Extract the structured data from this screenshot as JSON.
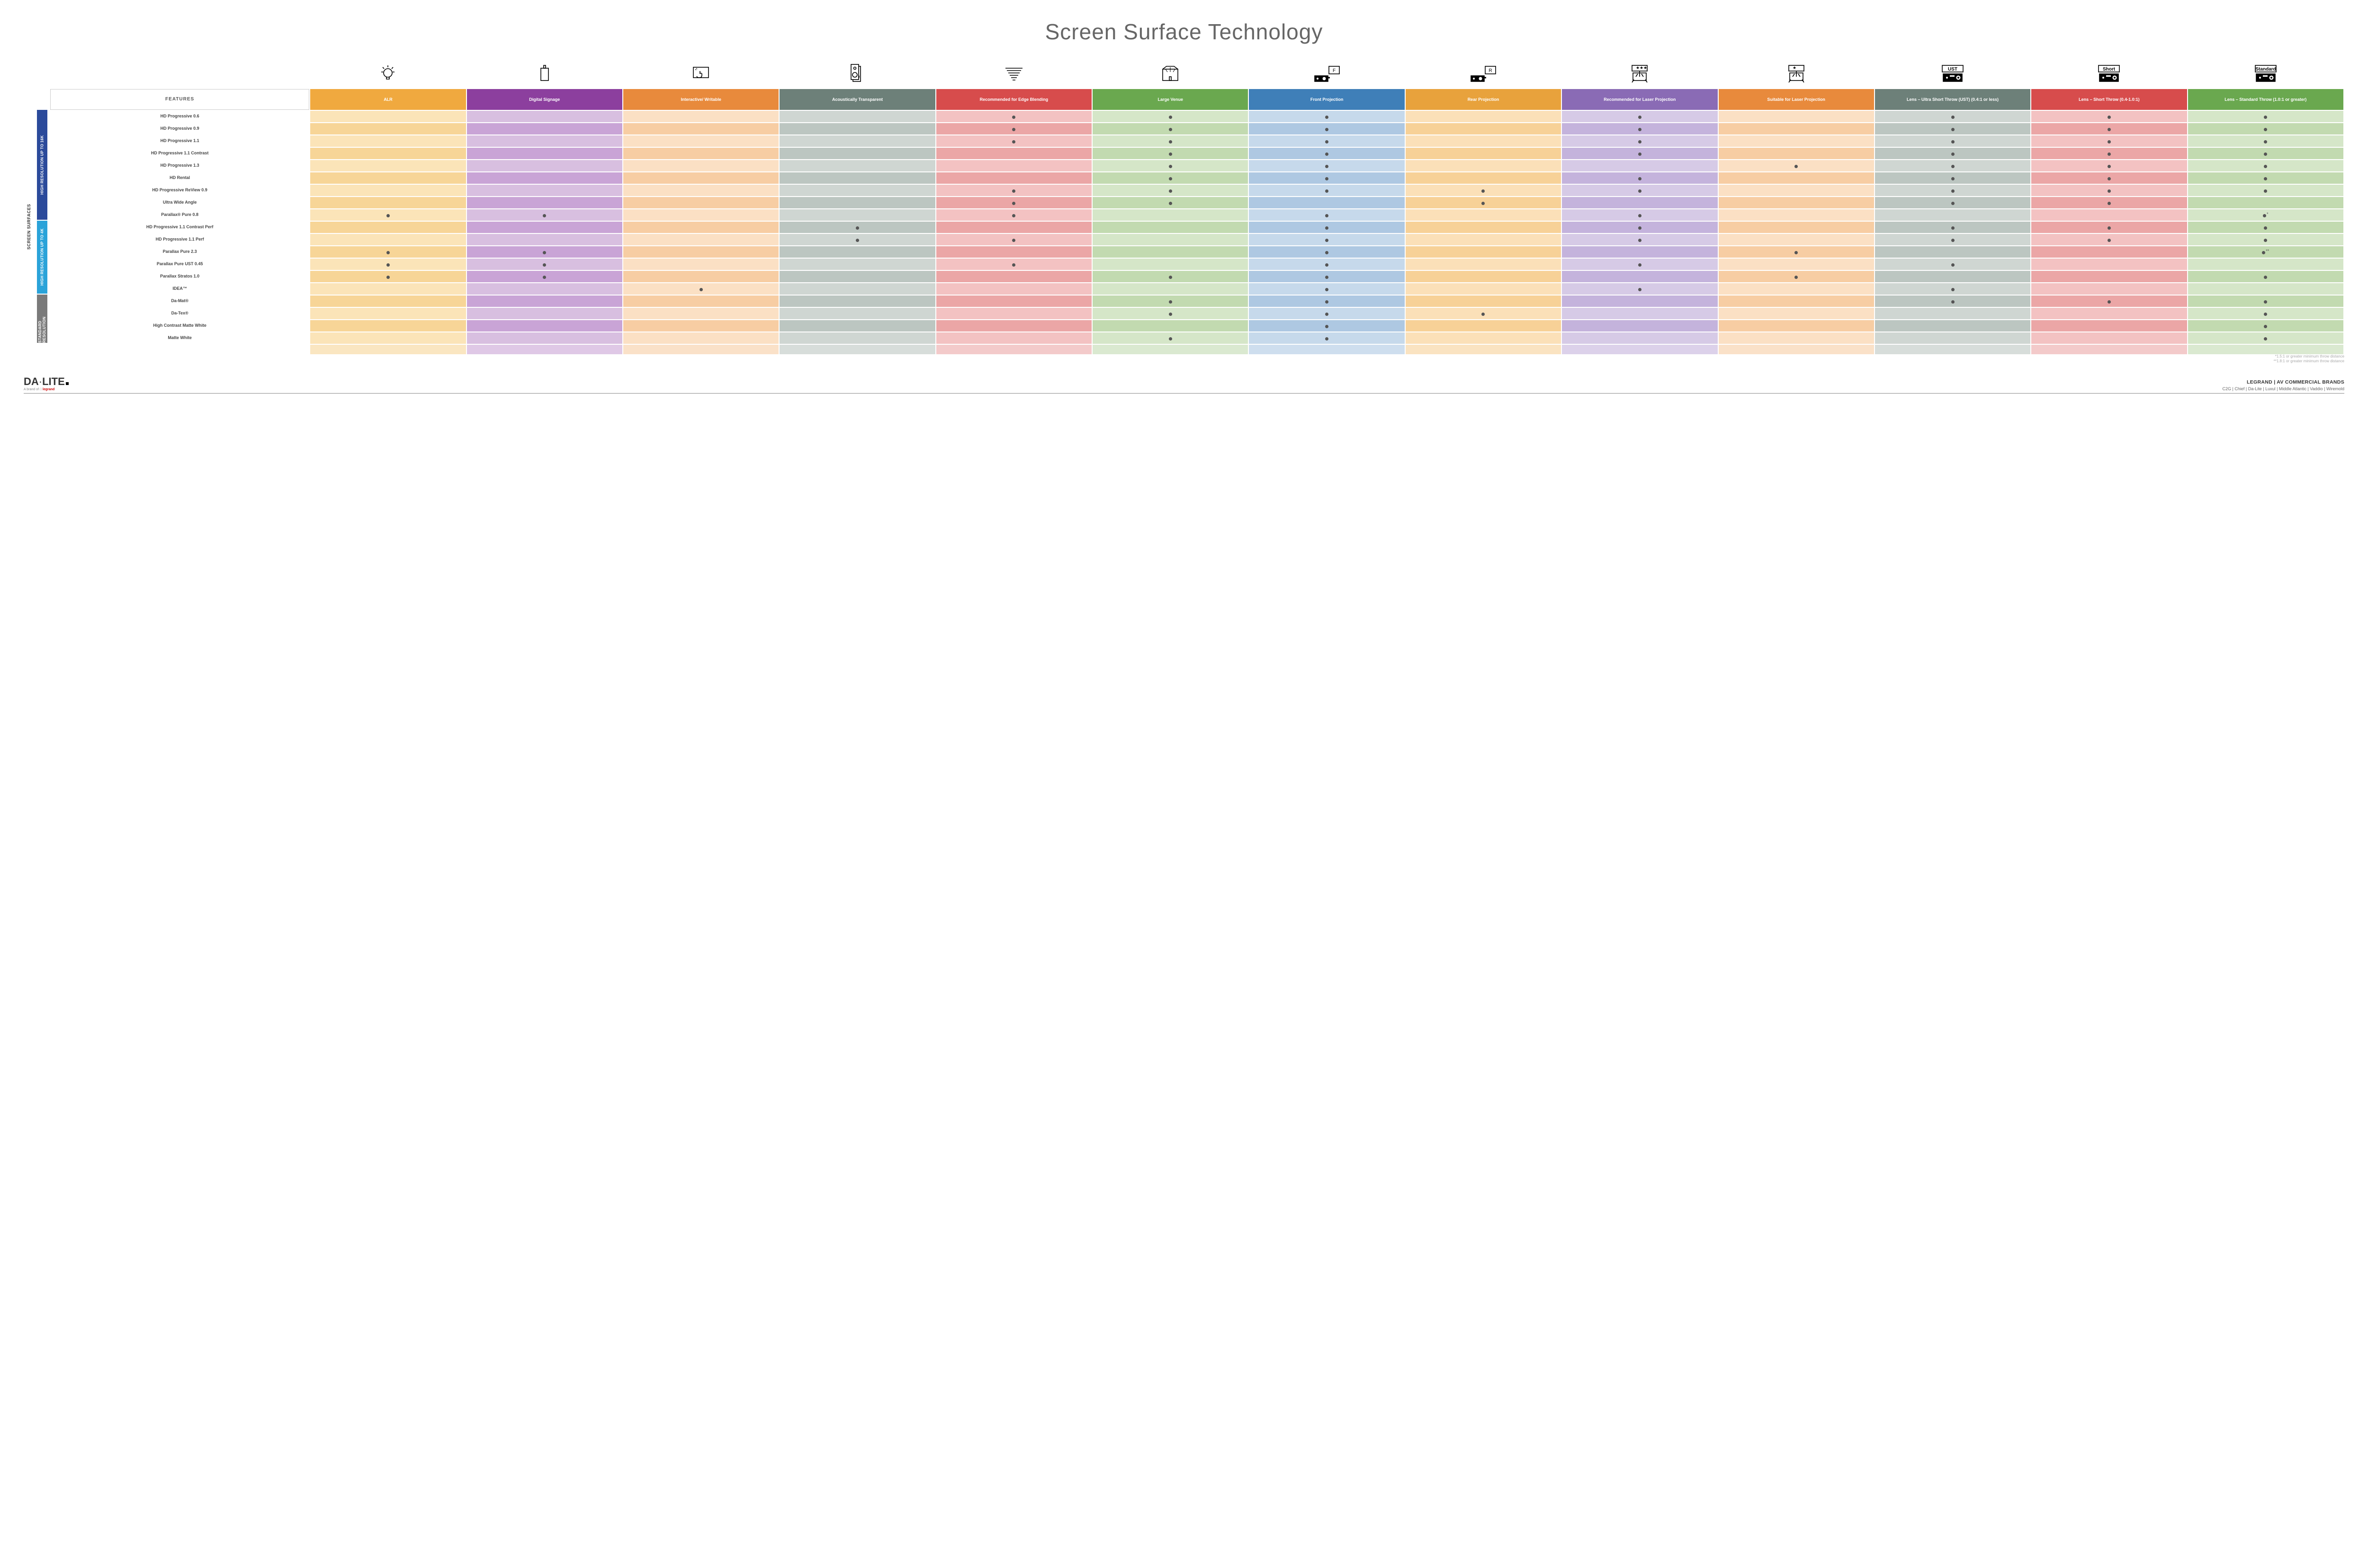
{
  "title": "Screen Surface Technology",
  "title_fontsize": 46,
  "title_color": "#666666",
  "features_header": "FEATURES",
  "columns": [
    {
      "key": "alr",
      "label": "ALR",
      "color": "#f0a93f"
    },
    {
      "key": "ds",
      "label": "Digital Signage",
      "color": "#8c3f9e"
    },
    {
      "key": "iw",
      "label": "Interactive/ Writable",
      "color": "#e88a3c"
    },
    {
      "key": "at",
      "label": "Acoustically Transparent",
      "color": "#6d8079"
    },
    {
      "key": "eb",
      "label": "Recommended for Edge Blending",
      "color": "#d74c4c"
    },
    {
      "key": "lv",
      "label": "Large Venue",
      "color": "#6aa84f"
    },
    {
      "key": "fp",
      "label": "Front Projection",
      "color": "#3f7fb8"
    },
    {
      "key": "rp",
      "label": "Rear Projection",
      "color": "#e8a23c"
    },
    {
      "key": "rlp",
      "label": "Recommended for Laser Projection",
      "color": "#8a6bb5"
    },
    {
      "key": "slp",
      "label": "Suitable for Laser Projection",
      "color": "#e88a3c"
    },
    {
      "key": "ust",
      "label": "Lens – Ultra Short Throw (UST) (0.4:1 or less)",
      "color": "#6d8079"
    },
    {
      "key": "st",
      "label": "Lens – Short Throw (0.4-1.0:1)",
      "color": "#d74c4c"
    },
    {
      "key": "std",
      "label": "Lens – Standard Throw (1.0:1 or greater)",
      "color": "#6aa84f"
    }
  ],
  "cell_tints": {
    "rowlabel_even": "#ffffff",
    "rowlabel_odd": "#ffffff",
    "alr": [
      "#fbe4b8",
      "#f7d597"
    ],
    "ds": [
      "#d8bfe0",
      "#c9a4d6"
    ],
    "iw": [
      "#fbe0c4",
      "#f7cda3"
    ],
    "at": [
      "#cfd6d2",
      "#bcc6c1"
    ],
    "eb": [
      "#f3c2c2",
      "#eba6a6"
    ],
    "lv": [
      "#d5e6c8",
      "#c2dab0"
    ],
    "fp": [
      "#c6d9eb",
      "#aec8e2"
    ],
    "rp": [
      "#fbe0b8",
      "#f7d197"
    ],
    "rlp": [
      "#d6cae6",
      "#c4b3dc"
    ],
    "slp": [
      "#fbe0c4",
      "#f7cda3"
    ],
    "ust": [
      "#cfd6d2",
      "#bcc6c1"
    ],
    "st": [
      "#f3c2c2",
      "#eba6a6"
    ],
    "std": [
      "#d5e6c8",
      "#c2dab0"
    ]
  },
  "side_label": "SCREEN SURFACES",
  "groups": [
    {
      "label": "HIGH RESOLUTION UP TO 16K",
      "color": "#2b4a9b",
      "rows": 9
    },
    {
      "label": "HIGH RESOLUTION UP TO 4K",
      "color": "#2aa3d9",
      "rows": 6
    },
    {
      "label": "STANDARD RESOLUTION",
      "color": "#7a7a7a",
      "rows": 4
    }
  ],
  "rows": [
    {
      "label": "HD Progressive 0.6",
      "dots": {
        "eb": "•",
        "lv": "•",
        "fp": "•",
        "rlp": "•",
        "ust": "•",
        "st": "•",
        "std": "•"
      }
    },
    {
      "label": "HD Progressive 0.9",
      "dots": {
        "eb": "•",
        "lv": "•",
        "fp": "•",
        "rlp": "•",
        "ust": "•",
        "st": "•",
        "std": "•"
      }
    },
    {
      "label": "HD Progressive 1.1",
      "dots": {
        "eb": "•",
        "lv": "•",
        "fp": "•",
        "rlp": "•",
        "ust": "•",
        "st": "•",
        "std": "•"
      }
    },
    {
      "label": "HD Progressive 1.1 Contrast",
      "dots": {
        "lv": "•",
        "fp": "•",
        "rlp": "•",
        "ust": "•",
        "st": "•",
        "std": "•"
      }
    },
    {
      "label": "HD Progressive 1.3",
      "dots": {
        "lv": "•",
        "fp": "•",
        "slp": "•",
        "ust": "•",
        "st": "•",
        "std": "•"
      }
    },
    {
      "label": "HD Rental",
      "dots": {
        "lv": "•",
        "fp": "•",
        "rlp": "•",
        "ust": "•",
        "st": "•",
        "std": "•"
      }
    },
    {
      "label": "HD Progressive ReView 0.9",
      "dots": {
        "eb": "•",
        "lv": "•",
        "fp": "•",
        "rp": "•",
        "rlp": "•",
        "ust": "•",
        "st": "•",
        "std": "•"
      }
    },
    {
      "label": "Ultra Wide Angle",
      "dots": {
        "eb": "•",
        "lv": "•",
        "rp": "•",
        "ust": "•",
        "st": "•"
      }
    },
    {
      "label": "Parallax® Pure 0.8",
      "dots": {
        "alr": "•",
        "ds": "•",
        "eb": "•",
        "fp": "•",
        "rlp": "•",
        "std": "•*"
      }
    },
    {
      "label": "HD Progressive 1.1 Contrast Perf",
      "dots": {
        "at": "•",
        "fp": "•",
        "rlp": "•",
        "ust": "•",
        "st": "•",
        "std": "•"
      }
    },
    {
      "label": "HD Progressive 1.1 Perf",
      "dots": {
        "at": "•",
        "eb": "•",
        "fp": "•",
        "rlp": "•",
        "ust": "•",
        "st": "•",
        "std": "•"
      }
    },
    {
      "label": "Parallax Pure 2.3",
      "dots": {
        "alr": "•",
        "ds": "•",
        "fp": "•",
        "slp": "•",
        "std": "•**"
      }
    },
    {
      "label": "Parallax Pure UST 0.45",
      "dots": {
        "alr": "•",
        "ds": "•",
        "eb": "•",
        "fp": "•",
        "rlp": "•",
        "ust": "•"
      }
    },
    {
      "label": "Parallax Stratos 1.0",
      "dots": {
        "alr": "•",
        "ds": "•",
        "lv": "•",
        "fp": "•",
        "slp": "•",
        "std": "•"
      }
    },
    {
      "label": "IDEA™",
      "dots": {
        "iw": "•",
        "fp": "•",
        "rlp": "•",
        "ust": "•"
      }
    },
    {
      "label": "Da-Mat®",
      "dots": {
        "lv": "•",
        "fp": "•",
        "ust": "•",
        "st": "•",
        "std": "•"
      }
    },
    {
      "label": "Da-Tex®",
      "dots": {
        "lv": "•",
        "fp": "•",
        "rp": "•",
        "std": "•"
      }
    },
    {
      "label": "High Contrast Matte White",
      "dots": {
        "fp": "•",
        "std": "•"
      }
    },
    {
      "label": "Matte White",
      "dots": {
        "lv": "•",
        "fp": "•",
        "std": "•"
      }
    }
  ],
  "icons": {
    "alr": "bulb",
    "ds": "signage",
    "iw": "touch",
    "at": "speaker",
    "eb": "blend",
    "lv": "venue",
    "fp": "projF",
    "rp": "projR",
    "rlp": "laser3",
    "slp": "laser1",
    "ust": "projUST",
    "st": "projShort",
    "std": "projStd"
  },
  "icon_labels": {
    "ust": "UST",
    "st": "Short",
    "std": "Standard"
  },
  "footnotes": [
    "*1.5:1 or greater minimum throw distance",
    "**1.8:1 or greater minimum throw distance"
  ],
  "footer": {
    "logo_main": "DA·LITE",
    "logo_sub_prefix": "A brand of ",
    "logo_sub_brand": "legrand",
    "right_line1": "LEGRAND | AV COMMERCIAL BRANDS",
    "right_line2": "C2G  |  Chief  |  Da-Lite  |  Luxul  |  Middle Atlantic  |  Vaddio  |  Wiremold"
  }
}
